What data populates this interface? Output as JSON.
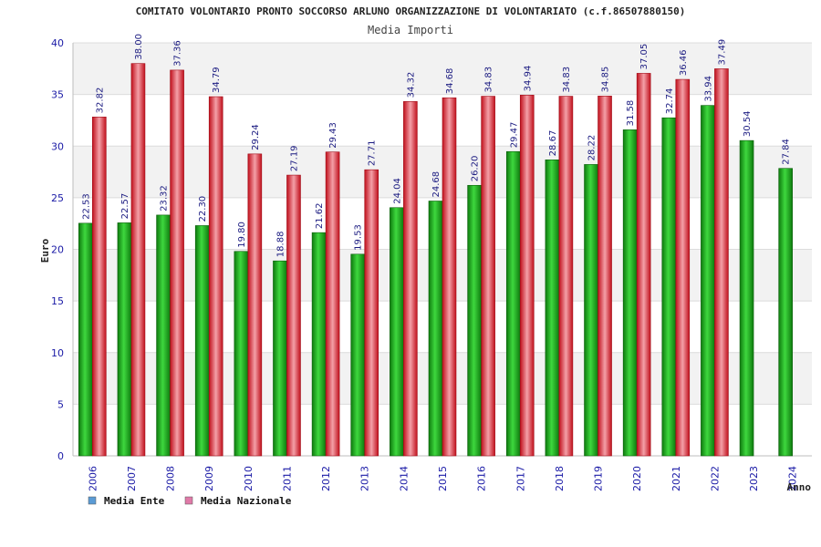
{
  "chart_data": {
    "type": "bar",
    "title": "COMITATO VOLONTARIO PRONTO SOCCORSO ARLUNO ORGANIZZAZIONE DI VOLONTARIATO (c.f.86507880150)",
    "subtitle": "Media Importi",
    "xlabel": "Anno",
    "ylabel": "Euro",
    "ylim": [
      0,
      40
    ],
    "yticks": [
      0,
      5,
      10,
      15,
      20,
      25,
      30,
      35,
      40
    ],
    "grid": true,
    "legend_position": "bottom-left",
    "categories": [
      "2006",
      "2007",
      "2008",
      "2009",
      "2010",
      "2011",
      "2012",
      "2013",
      "2014",
      "2015",
      "2016",
      "2017",
      "2018",
      "2019",
      "2020",
      "2021",
      "2022",
      "2023",
      "2024"
    ],
    "series": [
      {
        "name": "Media Ente",
        "legend_color": "#5b9bd5",
        "bar_color": "#22b422",
        "values": [
          22.53,
          22.57,
          23.32,
          22.3,
          19.8,
          18.88,
          21.62,
          19.53,
          24.04,
          24.68,
          26.2,
          29.47,
          28.67,
          28.22,
          31.58,
          32.74,
          33.94,
          30.54,
          27.84
        ],
        "labels": [
          "22.53",
          "22.57",
          "23.32",
          "22.30",
          "19.80",
          "18.88",
          "21.62",
          "19.53",
          "24.04",
          "24.68",
          "26.20",
          "29.47",
          "28.67",
          "28.22",
          "31.58",
          "32.74",
          "33.94",
          "30.54",
          "27.84"
        ]
      },
      {
        "name": "Media Nazionale",
        "legend_color": "#e07aa8",
        "bar_color": "#e8303c",
        "values": [
          32.82,
          38.0,
          37.36,
          34.79,
          29.24,
          27.19,
          29.43,
          27.71,
          34.32,
          34.68,
          34.83,
          34.94,
          34.83,
          34.85,
          37.05,
          36.46,
          37.49,
          null,
          null
        ],
        "labels": [
          "32.82",
          "38.00",
          "37.36",
          "34.79",
          "29.24",
          "27.19",
          "29.43",
          "27.71",
          "34.32",
          "34.68",
          "34.83",
          "34.94",
          "34.83",
          "34.85",
          "37.05",
          "36.46",
          "37.49",
          "",
          ""
        ]
      }
    ]
  }
}
